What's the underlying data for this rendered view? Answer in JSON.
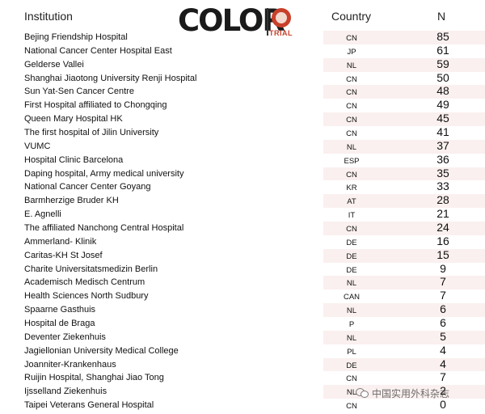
{
  "header": {
    "institution": "Institution",
    "country": "Country",
    "n": "N"
  },
  "logo": {
    "word": "COLOR",
    "badge": "III",
    "trial": "TRIAL",
    "accent": "#c8402a"
  },
  "rows": [
    {
      "institution": "Bejing Friendship Hospital",
      "country": "CN",
      "n": "85"
    },
    {
      "institution": "National Cancer Center Hospital East",
      "country": "JP",
      "n": "61"
    },
    {
      "institution": "Gelderse Vallei",
      "country": "NL",
      "n": "59"
    },
    {
      "institution": "Shanghai Jiaotong University Renji Hospital",
      "country": "CN",
      "n": "50"
    },
    {
      "institution": "Sun Yat-Sen Cancer Centre",
      "country": "CN",
      "n": "48"
    },
    {
      "institution": "First Hospital affiliated to Chongqing",
      "country": "CN",
      "n": "49"
    },
    {
      "institution": "Queen Mary Hospital HK",
      "country": "CN",
      "n": "45"
    },
    {
      "institution": "The first hospital of Jilin University",
      "country": "CN",
      "n": "41"
    },
    {
      "institution": "VUMC",
      "country": "NL",
      "n": "37"
    },
    {
      "institution": "Hospital Clinic Barcelona",
      "country": "ESP",
      "n": "36"
    },
    {
      "institution": "Daping hospital, Army medical university",
      "country": "CN",
      "n": "35"
    },
    {
      "institution": "National Cancer Center Goyang",
      "country": "KR",
      "n": "33"
    },
    {
      "institution": "Barmherzige Bruder KH",
      "country": "AT",
      "n": "28"
    },
    {
      "institution": "E. Agnelli",
      "country": "IT",
      "n": "21"
    },
    {
      "institution": "The affiliated Nanchong Central Hospital",
      "country": "CN",
      "n": "24"
    },
    {
      "institution": "Ammerland- Klinik",
      "country": "DE",
      "n": "16"
    },
    {
      "institution": "Caritas-KH St Josef",
      "country": "DE",
      "n": "15"
    },
    {
      "institution": "Charite Universitatsmedizin Berlin",
      "country": "DE",
      "n": "9"
    },
    {
      "institution": "Academisch Medisch Centrum",
      "country": "NL",
      "n": "7"
    },
    {
      "institution": "Health Sciences North Sudbury",
      "country": "CAN",
      "n": "7"
    },
    {
      "institution": "Spaarne Gasthuis",
      "country": "NL",
      "n": "6"
    },
    {
      "institution": "Hospital de Braga",
      "country": "P",
      "n": "6"
    },
    {
      "institution": "Deventer Ziekenhuis",
      "country": "NL",
      "n": "5"
    },
    {
      "institution": "Jagiellonian University Medical College",
      "country": "PL",
      "n": "4"
    },
    {
      "institution": "Joanniter-Krankenhaus",
      "country": "DE",
      "n": "4"
    },
    {
      "institution": "Ruijin Hospital, Shanghai Jiao Tong",
      "country": "CN",
      "n": "7"
    },
    {
      "institution": "Ijsselland Ziekenhuis",
      "country": "NL",
      "n": "2"
    },
    {
      "institution": "Taipei Veterans General Hospital",
      "country": "CN",
      "n": "0"
    }
  ],
  "watermark": "中国实用外科杂志",
  "colors": {
    "row_shade": "#faf0ef"
  }
}
